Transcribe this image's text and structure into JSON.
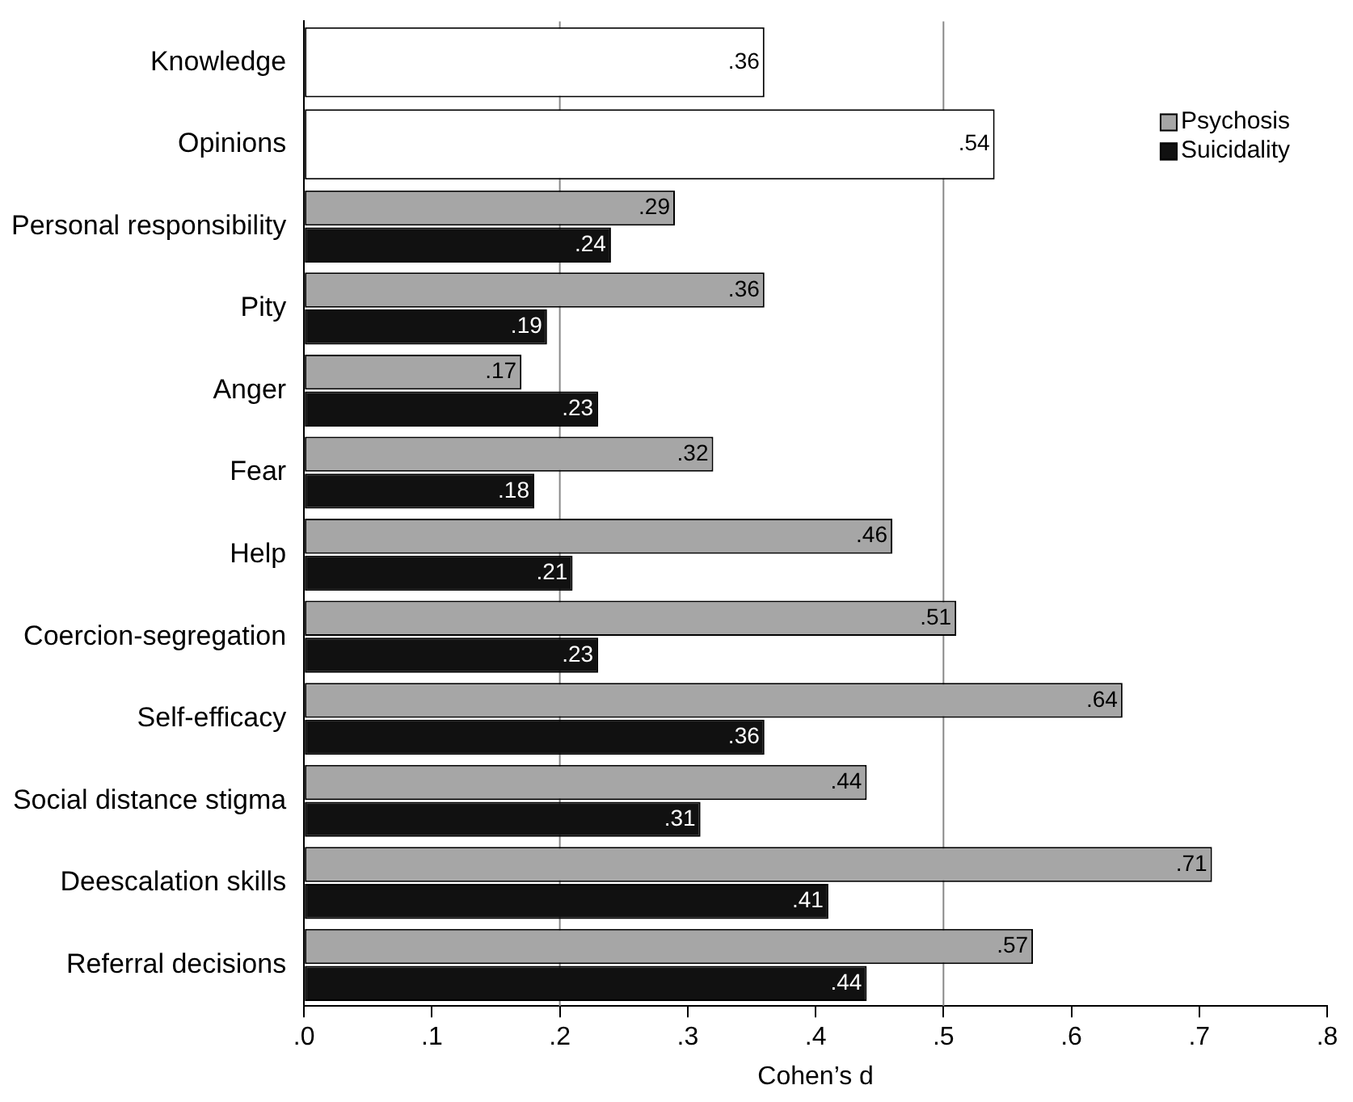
{
  "chart_data": {
    "type": "bar",
    "orientation": "horizontal",
    "xlabel": "Cohen’s d",
    "categories": [
      "Knowledge",
      "Opinions",
      "Personal responsibility",
      "Pity",
      "Anger",
      "Fear",
      "Help",
      "Coercion-segregation",
      "Self-efficacy",
      "Social distance stigma",
      "Deescalation skills",
      "Referral decisions"
    ],
    "series": [
      {
        "color": "#ffffff",
        "values": [
          0.36,
          0.54,
          null,
          null,
          null,
          null,
          null,
          null,
          null,
          null,
          null,
          null
        ],
        "value_labels": [
          ".36",
          ".54",
          null,
          null,
          null,
          null,
          null,
          null,
          null,
          null,
          null,
          null
        ]
      },
      {
        "name": "Psychosis",
        "color": "#a6a6a6",
        "values": [
          null,
          null,
          0.29,
          0.36,
          0.17,
          0.32,
          0.46,
          0.51,
          0.64,
          0.44,
          0.71,
          0.57
        ],
        "value_labels": [
          null,
          null,
          ".29",
          ".36",
          ".17",
          ".32",
          ".46",
          ".51",
          ".64",
          ".44",
          ".71",
          ".57"
        ]
      },
      {
        "name": "Suicidality",
        "color": "#111111",
        "values": [
          null,
          null,
          0.24,
          0.19,
          0.23,
          0.18,
          0.21,
          0.23,
          0.36,
          0.31,
          0.41,
          0.44
        ],
        "value_labels": [
          null,
          null,
          ".24",
          ".19",
          ".23",
          ".18",
          ".21",
          ".23",
          ".36",
          ".31",
          ".41",
          ".44"
        ]
      }
    ],
    "xlim": [
      0,
      0.8
    ],
    "xticks": [
      {
        "value": 0,
        "label": ".0"
      },
      {
        "value": 0.1,
        "label": ".1"
      },
      {
        "value": 0.2,
        "label": ".2"
      },
      {
        "value": 0.3,
        "label": ".3"
      },
      {
        "value": 0.4,
        "label": ".4"
      },
      {
        "value": 0.5,
        "label": ".5"
      },
      {
        "value": 0.6,
        "label": ".6"
      },
      {
        "value": 0.7,
        "label": ".7"
      },
      {
        "value": 0.8,
        "label": ".8"
      }
    ],
    "ref_lines": [
      {
        "axis": "x",
        "value": 0.2,
        "color": "#888888"
      },
      {
        "axis": "x",
        "value": 0.5,
        "color": "#888888"
      }
    ],
    "grid": false,
    "legend": "top right"
  }
}
